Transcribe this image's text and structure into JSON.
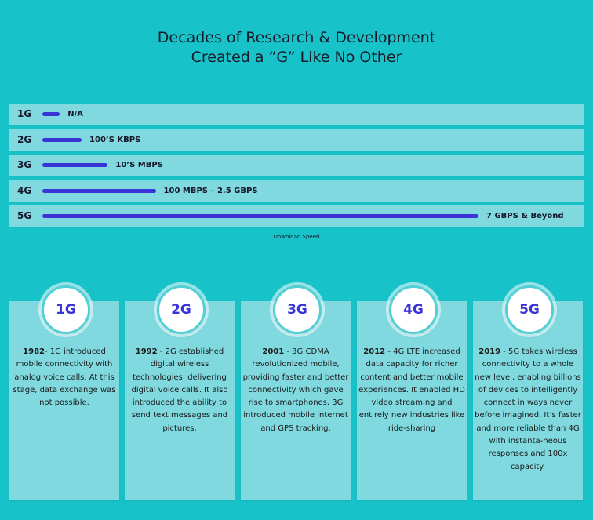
{
  "title": {
    "line1": "Decades of Research & Development",
    "line2": "Created a ”G” Like No Other"
  },
  "chart_data": {
    "type": "bar",
    "orientation": "horizontal",
    "categories": [
      "1G",
      "2G",
      "3G",
      "4G",
      "5G"
    ],
    "value_labels": [
      "N/A",
      "100’S KBPS",
      "10’S MBPS",
      "100 MBPS – 2.5 GBPS",
      "7 GBPS & Beyond"
    ],
    "relative_bar_length": [
      0.04,
      0.09,
      0.15,
      0.26,
      1.0
    ],
    "xlabel": "Download Speed",
    "ylabel": "",
    "color": "#3a33d6",
    "grid": false,
    "legend": "none"
  },
  "cards": [
    {
      "gen": "1G",
      "year": "1982",
      "text": "- 1G introduced mobile connectivity with analog voice calls. At this stage, data exchange was not possible."
    },
    {
      "gen": "2G",
      "year": "1992",
      "text": " - 2G established digital wireless technologies, delivering digital voice calls. It also introduced the ability to send text messages and pictures."
    },
    {
      "gen": "3G",
      "year": "2001",
      "text": " - 3G CDMA revolutionized mobile, providing faster and better connectivity which gave rise to smartphones. 3G introduced mobile internet and GPS tracking."
    },
    {
      "gen": "4G",
      "year": "2012",
      "text": " - 4G LTE increased data capacity for richer content and better mobile experiences. It enabled HD video streaming and entirely new industries like ride-sharing"
    },
    {
      "gen": "5G",
      "year": "2019",
      "text": " - 5G takes wireless connectivity to a whole new level, enabling billions of devices to intelligently connect in ways never before imagined. It’s faster and more reliable than 4G with instanta-neous responses and 100x capacity."
    }
  ],
  "colors": {
    "background": "#17c3c9",
    "panel": "#7fd9df",
    "accent": "#3a33d6"
  }
}
